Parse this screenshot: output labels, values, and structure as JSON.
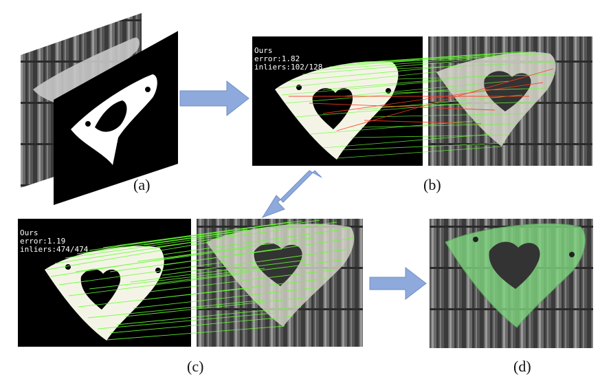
{
  "panels": {
    "a": {
      "caption": "(a)"
    },
    "b": {
      "caption": "(b)",
      "method": "Ours",
      "error": "error:1.82",
      "inliers": "inliers:102/128"
    },
    "c": {
      "caption": "(c)",
      "method": "Ours",
      "error": "error:1.19",
      "inliers": "inliers:474/474"
    },
    "d": {
      "caption": "(d)"
    }
  },
  "colors": {
    "arrow": "#8ea9db",
    "arrow_edge": "#6f8fc6",
    "inlier_line": "#66ff33",
    "outlier_line": "#ff3b1f",
    "mask_overlay": "#7fd67f"
  }
}
